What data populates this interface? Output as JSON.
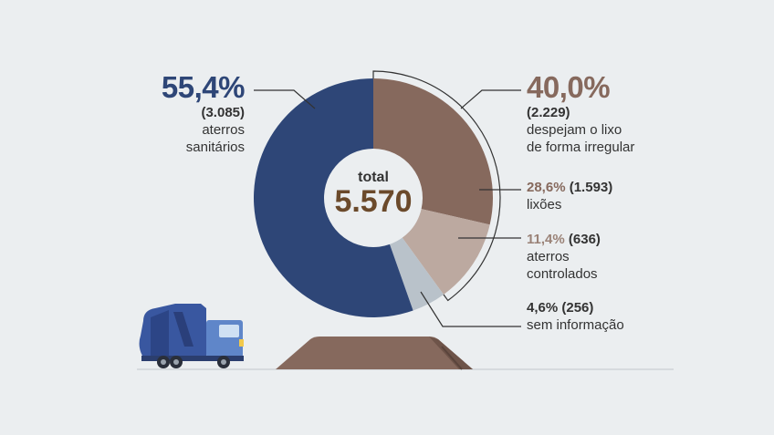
{
  "colors": {
    "background": "#ebeef0",
    "sanitarios": "#2e4677",
    "lixoes": "#86695d",
    "controlados": "#bca9a0",
    "sem_info": "#b9c2ca",
    "hole": "#ebeef0",
    "total_value": "#6b4a2b",
    "truck_body": "#3957a0",
    "truck_cab": "#5f86c9",
    "mound": "#86695d"
  },
  "icons": [
    "garbage-truck-icon",
    "dirt-mound-icon"
  ],
  "chart_data": {
    "type": "pie",
    "donut": true,
    "center_label": "total",
    "center_value": "5.570",
    "slices": [
      {
        "key": "lixoes",
        "percent": "28,6%",
        "count": "(1.593)",
        "label": "lixões",
        "value": 28.6
      },
      {
        "key": "controlados",
        "percent": "11,4%",
        "count": "(636)",
        "label_lines": [
          "aterros",
          "controlados"
        ],
        "value": 11.4
      },
      {
        "key": "sem_info",
        "percent": "4,6%",
        "count": "(256)",
        "label": "sem informação",
        "value": 4.6
      },
      {
        "key": "sanitarios",
        "percent": "55,4%",
        "count": "(3.085)",
        "label_lines": [
          "aterros",
          "sanitários"
        ],
        "value": 55.4
      }
    ],
    "group": {
      "percent": "40,0%",
      "count": "(2.229)",
      "label_lines": [
        "despejam o lixo",
        "de forma irregular"
      ],
      "members": [
        "lixoes",
        "controlados"
      ]
    }
  }
}
